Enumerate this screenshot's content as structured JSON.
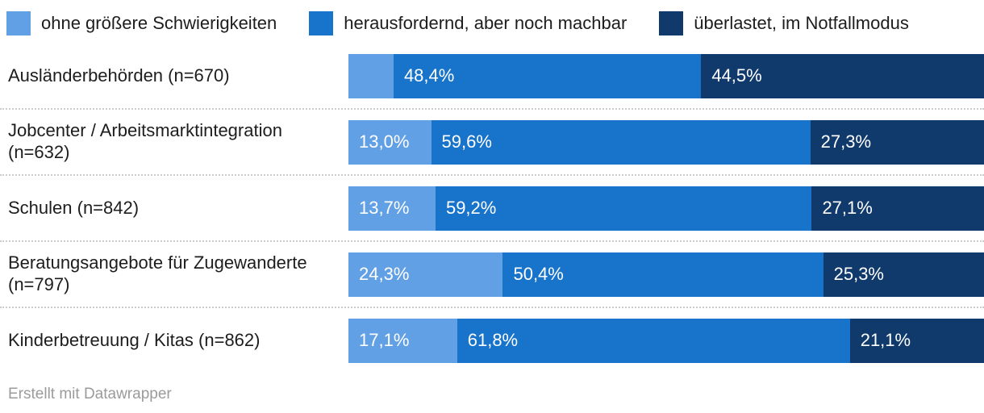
{
  "legend": {
    "items": [
      {
        "label": "ohne größere Schwierigkeiten",
        "color": "#61A0E4"
      },
      {
        "label": "herausfordernd, aber noch machbar",
        "color": "#1874CB"
      },
      {
        "label": "überlastet, im Notfallmodus",
        "color": "#113A6C"
      }
    ]
  },
  "chart_data": {
    "type": "bar",
    "orientation": "horizontal",
    "stacked": true,
    "unit": "%",
    "decimal_separator": ",",
    "xlim": [
      0,
      100
    ],
    "grid": false,
    "legend_position": "top",
    "categories": [
      "Ausländerbehörden (n=670)",
      "Jobcenter / Arbeitsmarktintegration (n=632)",
      "Schulen (n=842)",
      "Beratungsangebote für Zugewanderte (n=797)",
      "Kinderbetreuung / Kitas (n=862)"
    ],
    "series": [
      {
        "name": "ohne größere Schwierigkeiten",
        "color": "#61A0E4",
        "values": [
          7.1,
          13.0,
          13.7,
          24.3,
          17.1
        ],
        "labels": [
          "",
          "13,0%",
          "13,7%",
          "24,3%",
          "17,1%"
        ]
      },
      {
        "name": "herausfordernd, aber noch machbar",
        "color": "#1874CB",
        "values": [
          48.4,
          59.6,
          59.2,
          50.4,
          61.8
        ],
        "labels": [
          "48,4%",
          "59,6%",
          "59,2%",
          "50,4%",
          "61,8%"
        ]
      },
      {
        "name": "überlastet, im Notfallmodus",
        "color": "#113A6C",
        "values": [
          44.5,
          27.3,
          27.1,
          25.3,
          21.1
        ],
        "labels": [
          "44,5%",
          "27,3%",
          "27,1%",
          "25,3%",
          "21,1%"
        ]
      }
    ]
  },
  "footer": {
    "credit": "Erstellt mit Datawrapper"
  }
}
